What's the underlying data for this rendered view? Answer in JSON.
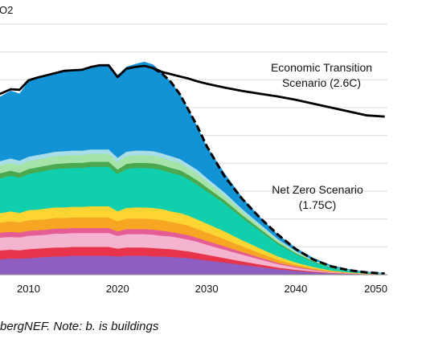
{
  "chart_data": {
    "type": "area",
    "unit_label": "O2",
    "x": [
      2005,
      2006,
      2007,
      2008,
      2009,
      2010,
      2011,
      2012,
      2013,
      2014,
      2015,
      2016,
      2017,
      2018,
      2019,
      2020,
      2021,
      2022,
      2023,
      2024,
      2025,
      2026,
      2027,
      2028,
      2029,
      2030,
      2032,
      2034,
      2036,
      2038,
      2040,
      2042,
      2044,
      2046,
      2048,
      2050
    ],
    "xticks": [
      "2010",
      "2020",
      "2030",
      "2040",
      "2050"
    ],
    "xlim": [
      2006.8,
      2050.3
    ],
    "ylim": [
      0,
      45
    ],
    "series": [
      {
        "color": "#8e5fc0",
        "values": [
          2.6,
          2.7,
          2.8,
          2.9,
          2.9,
          3.0,
          3.1,
          3.2,
          3.3,
          3.3,
          3.4,
          3.4,
          3.4,
          3.4,
          3.4,
          3.3,
          3.4,
          3.4,
          3.4,
          3.3,
          3.3,
          3.2,
          3.1,
          3.0,
          2.8,
          2.6,
          2.2,
          1.8,
          1.4,
          1.0,
          0.7,
          0.45,
          0.25,
          0.15,
          0.08,
          0.05
        ]
      },
      {
        "color": "#e8344a",
        "values": [
          1.6,
          1.6,
          1.6,
          1.6,
          1.5,
          1.6,
          1.6,
          1.6,
          1.6,
          1.6,
          1.6,
          1.6,
          1.6,
          1.6,
          1.6,
          1.4,
          1.5,
          1.5,
          1.5,
          1.5,
          1.4,
          1.4,
          1.3,
          1.2,
          1.1,
          1.0,
          0.8,
          0.6,
          0.45,
          0.3,
          0.2,
          0.12,
          0.07,
          0.04,
          0.02,
          0.01
        ]
      },
      {
        "color": "#f4b4d0",
        "values": [
          2.2,
          2.2,
          2.3,
          2.3,
          2.3,
          2.4,
          2.4,
          2.4,
          2.5,
          2.5,
          2.5,
          2.5,
          2.5,
          2.5,
          2.5,
          2.3,
          2.4,
          2.4,
          2.4,
          2.4,
          2.3,
          2.3,
          2.2,
          2.1,
          2.0,
          1.8,
          1.5,
          1.2,
          0.9,
          0.6,
          0.4,
          0.25,
          0.14,
          0.08,
          0.04,
          0.02
        ]
      },
      {
        "color": "#e65d95",
        "values": [
          0.9,
          0.9,
          0.9,
          0.9,
          0.9,
          0.9,
          0.9,
          0.9,
          0.9,
          0.9,
          0.9,
          0.9,
          0.9,
          0.9,
          0.9,
          0.8,
          0.9,
          0.9,
          0.9,
          0.9,
          0.9,
          0.8,
          0.8,
          0.8,
          0.7,
          0.7,
          0.6,
          0.5,
          0.35,
          0.25,
          0.15,
          0.1,
          0.05,
          0.03,
          0.01,
          0.01
        ]
      },
      {
        "color": "#f6a623",
        "values": [
          1.8,
          1.8,
          1.8,
          1.9,
          1.8,
          1.9,
          1.9,
          1.9,
          1.9,
          1.9,
          1.9,
          1.9,
          1.9,
          1.9,
          1.9,
          1.8,
          1.9,
          1.9,
          1.9,
          1.9,
          1.9,
          1.8,
          1.8,
          1.7,
          1.6,
          1.5,
          1.3,
          1.0,
          0.8,
          0.55,
          0.35,
          0.22,
          0.12,
          0.06,
          0.03,
          0.02
        ]
      },
      {
        "color": "#fdd533",
        "values": [
          1.7,
          1.7,
          1.7,
          1.8,
          1.7,
          1.8,
          1.8,
          1.9,
          1.9,
          1.9,
          1.9,
          1.9,
          2.0,
          2.0,
          2.0,
          1.8,
          1.9,
          2.0,
          2.0,
          2.0,
          2.0,
          1.9,
          1.9,
          1.8,
          1.7,
          1.6,
          1.4,
          1.1,
          0.85,
          0.6,
          0.4,
          0.24,
          0.13,
          0.07,
          0.03,
          0.02
        ]
      },
      {
        "color": "#0fcfad",
        "values": [
          6.0,
          6.1,
          6.3,
          6.4,
          6.3,
          6.5,
          6.7,
          6.8,
          6.9,
          7.0,
          7.0,
          7.0,
          7.1,
          7.1,
          7.1,
          6.7,
          7.0,
          7.1,
          7.1,
          7.1,
          7.0,
          6.9,
          6.8,
          6.5,
          6.2,
          5.8,
          5.0,
          4.0,
          3.1,
          2.2,
          1.5,
          0.9,
          0.5,
          0.28,
          0.14,
          0.08
        ]
      },
      {
        "color": "#4aa84e",
        "values": [
          0.9,
          0.9,
          0.9,
          0.9,
          0.9,
          0.9,
          0.9,
          0.9,
          0.9,
          0.9,
          0.9,
          0.9,
          0.9,
          0.9,
          0.9,
          0.8,
          0.9,
          0.9,
          0.9,
          0.9,
          0.9,
          0.9,
          0.9,
          0.8,
          0.8,
          0.7,
          0.6,
          0.5,
          0.4,
          0.3,
          0.2,
          0.12,
          0.07,
          0.04,
          0.02,
          0.01
        ]
      },
      {
        "color": "#a5e3a9",
        "values": [
          1.3,
          1.3,
          1.4,
          1.4,
          1.4,
          1.4,
          1.4,
          1.4,
          1.4,
          1.4,
          1.4,
          1.4,
          1.4,
          1.4,
          1.4,
          1.3,
          1.4,
          1.4,
          1.4,
          1.4,
          1.3,
          1.3,
          1.3,
          1.2,
          1.2,
          1.1,
          0.9,
          0.7,
          0.55,
          0.4,
          0.25,
          0.15,
          0.08,
          0.04,
          0.02,
          0.01
        ]
      },
      {
        "color": "#a7dee8",
        "values": [
          0.8,
          0.8,
          0.8,
          0.8,
          0.8,
          0.8,
          0.8,
          0.8,
          0.8,
          0.8,
          0.8,
          0.8,
          0.8,
          0.8,
          0.8,
          0.8,
          0.8,
          0.8,
          0.8,
          0.8,
          0.8,
          0.8,
          0.7,
          0.7,
          0.7,
          0.6,
          0.5,
          0.4,
          0.3,
          0.22,
          0.15,
          0.09,
          0.05,
          0.03,
          0.01,
          0.01
        ]
      },
      {
        "color": "#1492d6",
        "values": [
          10.8,
          11.2,
          11.6,
          12.1,
          12.0,
          13.5,
          13.8,
          14.0,
          14.2,
          14.5,
          14.5,
          14.5,
          14.7,
          15.0,
          15.3,
          14.8,
          15.2,
          15.5,
          15.9,
          15.5,
          14.4,
          13.3,
          11.7,
          9.7,
          7.6,
          5.6,
          3.4,
          2.0,
          1.2,
          0.75,
          0.5,
          0.32,
          0.2,
          0.12,
          0.07,
          0.04
        ]
      }
    ],
    "scenario_lines": [
      {
        "name": "Economic Transition Scenario (2.6C)",
        "dashed": false,
        "color": "#000000",
        "values": [
          31.5,
          32.0,
          32.6,
          33.3,
          33.2,
          34.9,
          35.4,
          35.8,
          36.2,
          36.6,
          36.7,
          36.8,
          37.3,
          37.6,
          37.6,
          35.5,
          37.0,
          37.3,
          37.5,
          37.1,
          36.4,
          36.0,
          35.6,
          35.2,
          34.7,
          34.3,
          33.6,
          33.0,
          32.5,
          32.0,
          31.4,
          30.7,
          30.0,
          29.3,
          28.6,
          28.4
        ]
      },
      {
        "name": "Net Zero Scenario (1.75C)",
        "dashed": true,
        "color": "#000000",
        "values": [
          31.5,
          32.0,
          32.6,
          33.3,
          33.2,
          34.9,
          35.4,
          35.8,
          36.2,
          36.6,
          36.7,
          36.8,
          37.3,
          37.6,
          37.6,
          35.5,
          37.0,
          37.3,
          37.5,
          37.1,
          36.1,
          34.6,
          32.4,
          29.5,
          26.5,
          23.1,
          17.7,
          13.6,
          10.2,
          7.2,
          4.6,
          2.7,
          1.5,
          0.8,
          0.4,
          0.2
        ]
      }
    ],
    "annotations": [
      {
        "lines": [
          "Economic Transition",
          "Scenario (2.6C)"
        ]
      },
      {
        "lines": [
          "Net Zero Scenario",
          "(1.75C)"
        ]
      }
    ],
    "grid": true,
    "source_note": "bergNEF. Note: b. is buildings"
  }
}
